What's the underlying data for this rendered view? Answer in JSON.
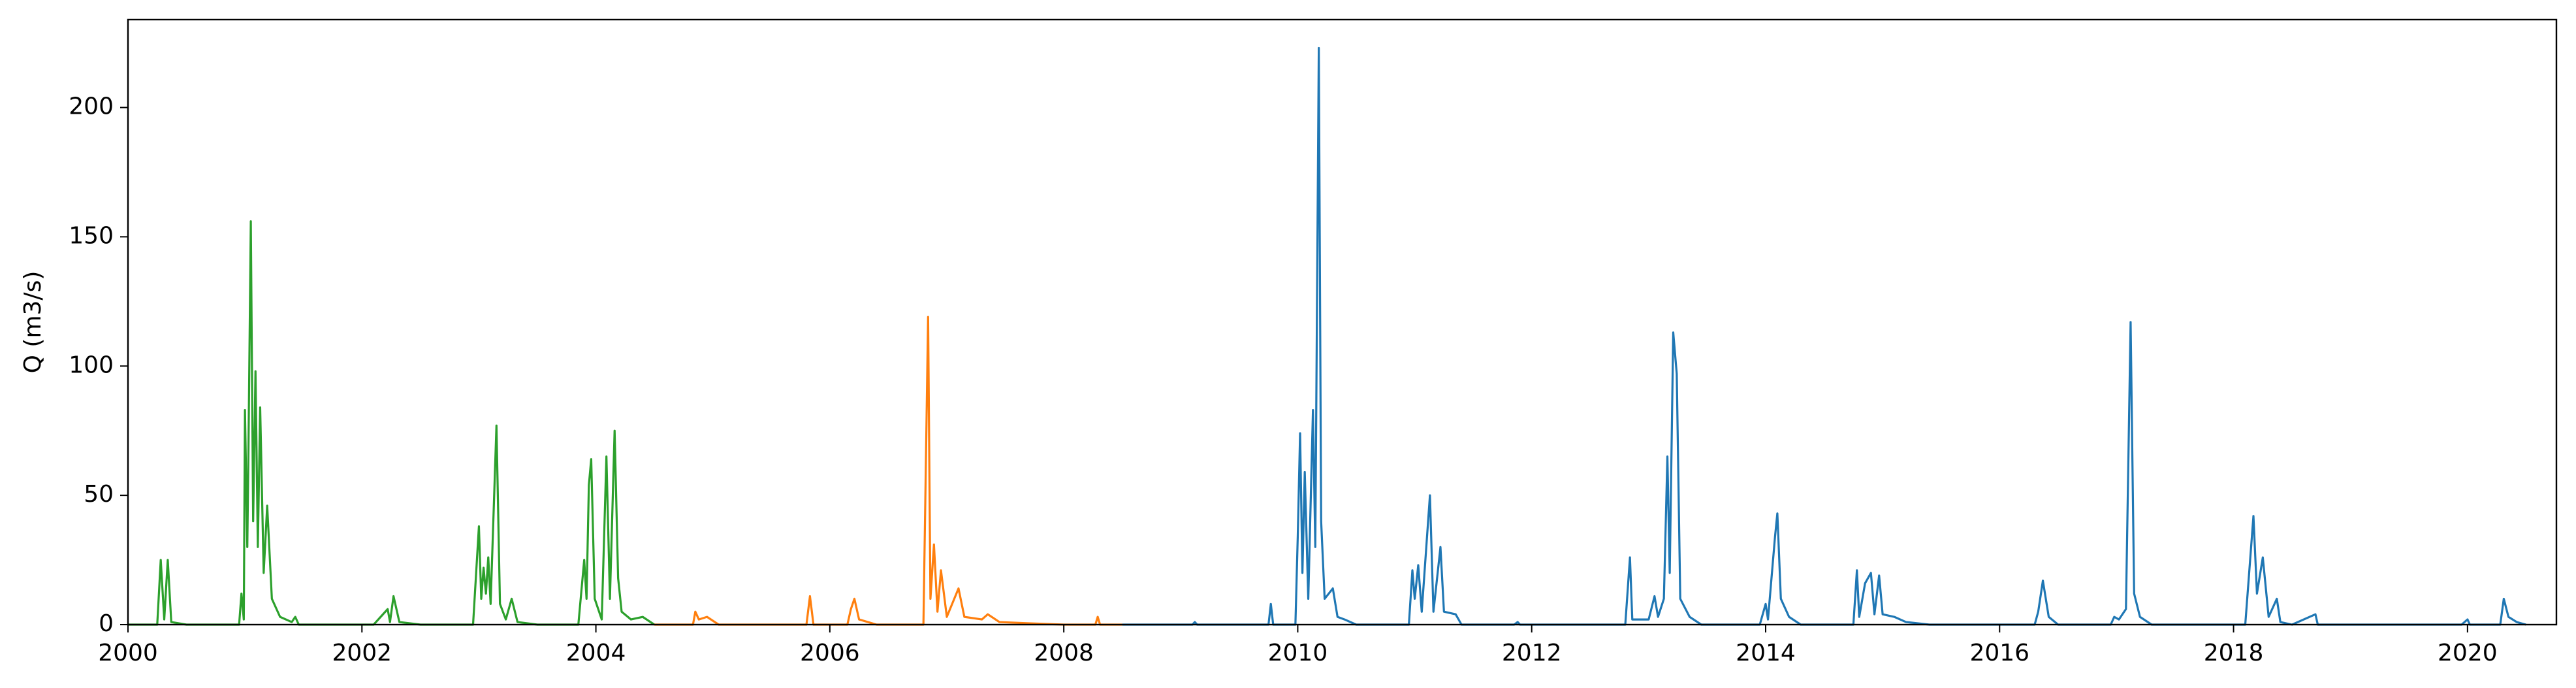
{
  "chart_data": {
    "type": "line",
    "ylabel": "Q (m3/s)",
    "xlim": [
      2000,
      2020.76
    ],
    "ylim": [
      0,
      234
    ],
    "xticks": [
      2000,
      2002,
      2004,
      2006,
      2008,
      2010,
      2012,
      2014,
      2016,
      2018,
      2020
    ],
    "yticks": [
      0,
      50,
      100,
      150,
      200
    ],
    "series": [
      {
        "color": "#2ca02c",
        "x": [
          2000.0,
          2000.25,
          2000.28,
          2000.31,
          2000.34,
          2000.37,
          2000.5,
          2000.95,
          2000.97,
          2000.99,
          2001.0,
          2001.02,
          2001.03,
          2001.05,
          2001.07,
          2001.09,
          2001.11,
          2001.13,
          2001.16,
          2001.19,
          2001.23,
          2001.3,
          2001.4,
          2001.43,
          2001.46,
          2002.1,
          2002.22,
          2002.24,
          2002.27,
          2002.32,
          2002.5,
          2002.95,
          2003.0,
          2003.02,
          2003.04,
          2003.06,
          2003.08,
          2003.1,
          2003.15,
          2003.18,
          2003.23,
          2003.28,
          2003.33,
          2003.5,
          2003.85,
          2003.9,
          2003.92,
          2003.94,
          2003.96,
          2003.99,
          2004.05,
          2004.09,
          2004.12,
          2004.16,
          2004.19,
          2004.22,
          2004.3,
          2004.4,
          2004.5
        ],
        "values": [
          0,
          0,
          25,
          2,
          25,
          1,
          0,
          0,
          12,
          2,
          83,
          30,
          68,
          156,
          40,
          98,
          30,
          84,
          20,
          46,
          10,
          3,
          1,
          3,
          0,
          0,
          6,
          1,
          11,
          1,
          0,
          0,
          38,
          10,
          22,
          12,
          26,
          8,
          77,
          8,
          2,
          10,
          1,
          0,
          0,
          25,
          10,
          54,
          64,
          10,
          2,
          65,
          10,
          75,
          18,
          5,
          2,
          3,
          0
        ]
      },
      {
        "color": "#ff7f0e",
        "x": [
          2004.5,
          2004.83,
          2004.85,
          2004.88,
          2004.95,
          2005.05,
          2005.8,
          2005.83,
          2005.86,
          2006.15,
          2006.18,
          2006.21,
          2006.25,
          2006.4,
          2006.8,
          2006.84,
          2006.86,
          2006.89,
          2006.92,
          2006.95,
          2007.0,
          2007.1,
          2007.15,
          2007.3,
          2007.35,
          2007.45,
          2007.7,
          2008.0,
          2008.27,
          2008.29,
          2008.31,
          2008.5
        ],
        "values": [
          0,
          0,
          5,
          2,
          3,
          0,
          0,
          11,
          0,
          0,
          6,
          10,
          2,
          0,
          0,
          119,
          10,
          31,
          5,
          21,
          3,
          14,
          3,
          2,
          4,
          1,
          0.5,
          0,
          0,
          3,
          0,
          0
        ]
      },
      {
        "color": "#1f77b4",
        "x": [
          2008.5,
          2009.1,
          2009.12,
          2009.14,
          2009.75,
          2009.77,
          2009.79,
          2009.98,
          2010.0,
          2010.02,
          2010.04,
          2010.06,
          2010.09,
          2010.13,
          2010.15,
          2010.18,
          2010.2,
          2010.23,
          2010.3,
          2010.34,
          2010.4,
          2010.5,
          2010.95,
          2010.98,
          2011.0,
          2011.03,
          2011.06,
          2011.13,
          2011.16,
          2011.22,
          2011.25,
          2011.35,
          2011.4,
          2011.85,
          2011.88,
          2011.9,
          2012.8,
          2012.84,
          2012.86,
          2013.0,
          2013.05,
          2013.08,
          2013.13,
          2013.16,
          2013.18,
          2013.21,
          2013.24,
          2013.27,
          2013.35,
          2013.45,
          2013.95,
          2014.0,
          2014.02,
          2014.08,
          2014.1,
          2014.13,
          2014.2,
          2014.3,
          2014.75,
          2014.78,
          2014.8,
          2014.85,
          2014.9,
          2014.93,
          2014.97,
          2015.0,
          2015.1,
          2015.2,
          2015.4,
          2016.3,
          2016.33,
          2016.37,
          2016.42,
          2016.5,
          2016.95,
          2016.98,
          2017.02,
          2017.08,
          2017.12,
          2017.15,
          2017.2,
          2017.3,
          2018.1,
          2018.14,
          2018.17,
          2018.2,
          2018.25,
          2018.3,
          2018.37,
          2018.4,
          2018.5,
          2018.7,
          2018.72,
          2019.0,
          2019.95,
          2020.0,
          2020.02,
          2020.28,
          2020.31,
          2020.35,
          2020.42,
          2020.5
        ],
        "values": [
          0,
          0,
          1,
          0,
          0,
          8,
          0,
          0,
          34,
          74,
          20,
          59,
          10,
          83,
          30,
          223,
          40,
          10,
          14,
          3,
          2,
          0,
          0,
          21,
          10,
          23,
          5,
          50,
          5,
          30,
          5,
          4,
          0,
          0,
          1,
          0,
          0,
          26,
          2,
          2,
          11,
          3,
          10,
          65,
          20,
          113,
          97,
          10,
          3,
          0,
          0,
          8,
          2,
          34,
          43,
          10,
          3,
          0,
          0,
          21,
          3,
          16,
          20,
          4,
          19,
          4,
          3,
          1,
          0,
          0,
          5,
          17,
          3,
          0,
          0,
          3,
          2,
          6,
          117,
          12,
          3,
          0,
          0,
          24,
          42,
          12,
          26,
          3,
          10,
          1,
          0,
          4,
          0,
          0,
          0,
          2,
          0,
          0,
          10,
          3,
          1,
          0
        ]
      }
    ]
  }
}
